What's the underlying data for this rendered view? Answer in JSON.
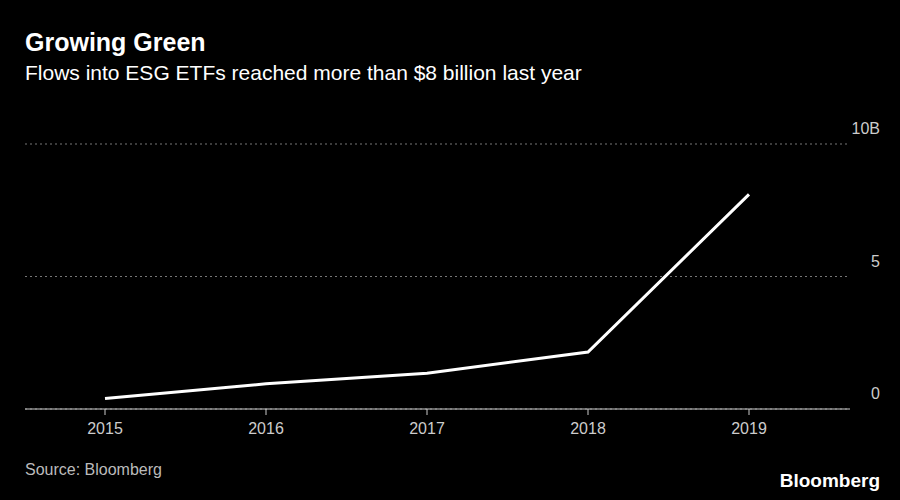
{
  "chart_data": {
    "type": "line",
    "title": "Growing Green",
    "subtitle": "Flows into ESG ETFs reached more than $8 billion last year",
    "categories": [
      "2015",
      "2016",
      "2017",
      "2018",
      "2019"
    ],
    "values": [
      0.4,
      0.95,
      1.35,
      2.15,
      8.1
    ],
    "color": "#ffffff",
    "ylim": [
      0,
      10
    ],
    "yticks": [
      0,
      5,
      {
        "value": 10,
        "label": "10B"
      }
    ],
    "grid": true,
    "source": "Source: Bloomberg",
    "brand": "Bloomberg"
  }
}
